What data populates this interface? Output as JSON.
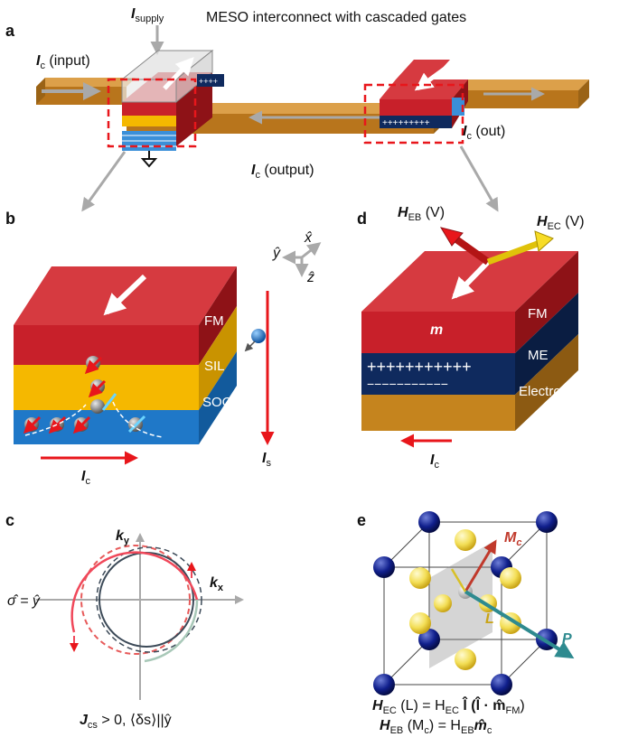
{
  "title": "MESO interconnect with cascaded gates",
  "panels": {
    "a": "a",
    "b": "b",
    "c": "c",
    "d": "d",
    "e": "e"
  },
  "panel_a": {
    "i_supply_sym": "I",
    "i_supply_sub": "supply",
    "ic_input_sym": "I",
    "ic_input_sub": "c",
    "ic_input_text": " (input)",
    "ic_output_sym": "I",
    "ic_output_sub": "c",
    "ic_output_text": " (output)",
    "ic_out_sym": "I",
    "ic_out_sub": "c",
    "ic_out_text": " (out)"
  },
  "panel_b": {
    "layers": [
      "FM",
      "SIL",
      "SOC"
    ],
    "axis_x": "x̂",
    "axis_y": "ŷ",
    "axis_z": "ẑ",
    "ic_sym": "I",
    "ic_sub": "c",
    "is_sym": "I",
    "is_sub": "s"
  },
  "panel_c": {
    "ky_sym": "k",
    "ky_sub": "y",
    "kx_sym": "k",
    "kx_sub": "x",
    "sigma": "σ̂ = ŷ",
    "caption": "J",
    "caption_sub": "cs",
    "caption_rest": " > 0, ⟨δs⟩||ŷ"
  },
  "panel_d": {
    "layers": [
      "FM",
      "ME",
      "Electrode"
    ],
    "m_label": "m",
    "heb_sym": "H",
    "heb_sub": "EB",
    "heb_v": " (V)",
    "hec_sym": "H",
    "hec_sub": "EC",
    "hec_v": " (V)",
    "plus_row": "+++++++++++",
    "minus_row": "−−−−−−−−−−−",
    "ic_sym": "I",
    "ic_sub": "c"
  },
  "panel_e": {
    "mc_sym": "M",
    "mc_sub": "c",
    "l_label": "L",
    "p_label": "P",
    "eq1": "H",
    "eq1_sub": "EC",
    "eq1_rest": " (L) = H",
    "eq1_sub2": "EC",
    "eq1_tail": " l̂ (l̂ · m̂",
    "eq1_sub3": "FM",
    "eq1_end": ")",
    "eq2": "H",
    "eq2_sub": "EB",
    "eq2_rest": " (M",
    "eq2_sub2": "c",
    "eq2_mid": ") = H",
    "eq2_sub3": "EB",
    "eq2_tail": "m̂",
    "eq2_sub4": "c"
  },
  "colors": {
    "fm_red": "#c8202a",
    "sil_yellow": "#f5b800",
    "soc_blue": "#1f78c8",
    "me_navy": "#0f2a5e",
    "electrode": "#c5841e",
    "arrow_red": "#e8161b",
    "arrow_gray": "#a9a9a9"
  }
}
